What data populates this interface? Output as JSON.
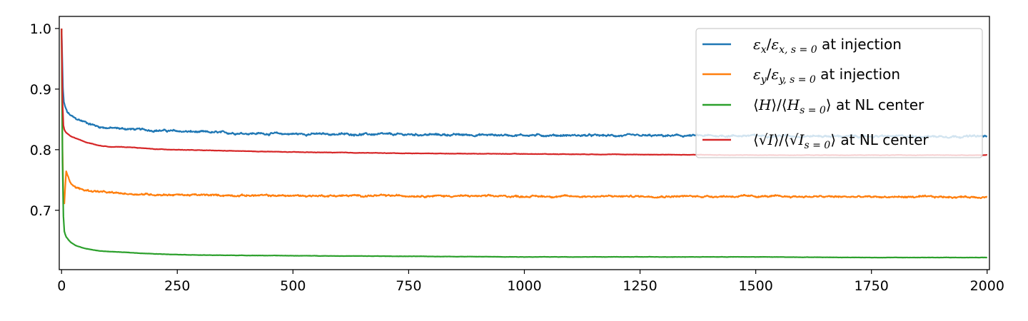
{
  "chart_data": {
    "type": "line",
    "title": "",
    "xlabel": "",
    "ylabel": "",
    "xlim": [
      -5,
      2005
    ],
    "ylim": [
      0.602,
      1.02
    ],
    "xticks": [
      0,
      250,
      500,
      750,
      1000,
      1250,
      1500,
      1750,
      2000
    ],
    "yticks": [
      0.7,
      0.8,
      0.9,
      1.0
    ],
    "xtick_labels": [
      "0",
      "250",
      "500",
      "750",
      "1000",
      "1250",
      "1500",
      "1750",
      "2000"
    ],
    "ytick_labels": [
      "0.7",
      "0.8",
      "0.9",
      "1.0"
    ],
    "grid": false,
    "legend_position": "top-right",
    "series": [
      {
        "name": "εx/εx,s=0 at injection",
        "legend": {
          "pre": "",
          "m1": "ε",
          "s1": "x",
          "mid": "/",
          "m2": "ε",
          "s2": "x, s = 0",
          "post": " at injection"
        },
        "color": "#1f77b4",
        "noise": 0.0016,
        "x": [
          0,
          3,
          5,
          8,
          12,
          20,
          30,
          50,
          80,
          100,
          150,
          200,
          300,
          400,
          500,
          750,
          1000,
          1250,
          1500,
          1750,
          2000
        ],
        "y": [
          1.0,
          0.9,
          0.878,
          0.87,
          0.862,
          0.856,
          0.851,
          0.846,
          0.838,
          0.836,
          0.834,
          0.832,
          0.829,
          0.827,
          0.826,
          0.825,
          0.824,
          0.823,
          0.823,
          0.822,
          0.822
        ]
      },
      {
        "name": "εy/εy,s=0 at injection",
        "legend": {
          "pre": "",
          "m1": "ε",
          "s1": "y",
          "mid": "/",
          "m2": "ε",
          "s2": "y, s = 0",
          "post": " at injection"
        },
        "color": "#ff7f0e",
        "noise": 0.0014,
        "x": [
          0,
          2,
          4,
          6,
          8,
          10,
          15,
          20,
          30,
          50,
          80,
          100,
          150,
          200,
          300,
          500,
          750,
          1000,
          1250,
          1500,
          1750,
          2000
        ],
        "y": [
          1.0,
          0.8,
          0.72,
          0.71,
          0.74,
          0.765,
          0.755,
          0.745,
          0.738,
          0.733,
          0.731,
          0.729,
          0.727,
          0.726,
          0.725,
          0.724,
          0.724,
          0.723,
          0.723,
          0.723,
          0.722,
          0.722
        ]
      },
      {
        "name": "⟨H⟩/⟨H⟩s=0 at NL center",
        "legend": {
          "pre": "⟨",
          "m1": "H",
          "s1": "",
          "mid": "⟩/⟨",
          "m2": "H",
          "s2": "s = 0",
          "close": "⟩",
          "post": " at NL center"
        },
        "color": "#2ca02c",
        "noise": 0.0002,
        "x": [
          0,
          2,
          4,
          6,
          8,
          10,
          15,
          20,
          30,
          50,
          80,
          100,
          150,
          200,
          300,
          500,
          750,
          1000,
          1250,
          1500,
          1750,
          2000
        ],
        "y": [
          1.0,
          0.78,
          0.69,
          0.665,
          0.66,
          0.656,
          0.651,
          0.647,
          0.642,
          0.637,
          0.633,
          0.632,
          0.63,
          0.628,
          0.626,
          0.625,
          0.624,
          0.623,
          0.623,
          0.623,
          0.622,
          0.622
        ]
      },
      {
        "name": "⟨√I⟩/⟨√I⟩s=0 at NL center",
        "legend": {
          "pre": "⟨√",
          "m1": "I",
          "s1": "",
          "mid": "⟩/⟨√",
          "m2": "I",
          "s2": "s = 0",
          "close": "⟩",
          "post": " at NL center"
        },
        "color": "#d62728",
        "noise": 0.0003,
        "x": [
          0,
          2,
          4,
          6,
          8,
          10,
          15,
          20,
          30,
          50,
          80,
          100,
          150,
          200,
          300,
          500,
          750,
          1000,
          1250,
          1500,
          1750,
          2000
        ],
        "y": [
          1.0,
          0.88,
          0.84,
          0.833,
          0.83,
          0.828,
          0.825,
          0.822,
          0.819,
          0.813,
          0.807,
          0.805,
          0.804,
          0.801,
          0.799,
          0.796,
          0.794,
          0.793,
          0.792,
          0.791,
          0.791,
          0.791
        ]
      }
    ]
  }
}
